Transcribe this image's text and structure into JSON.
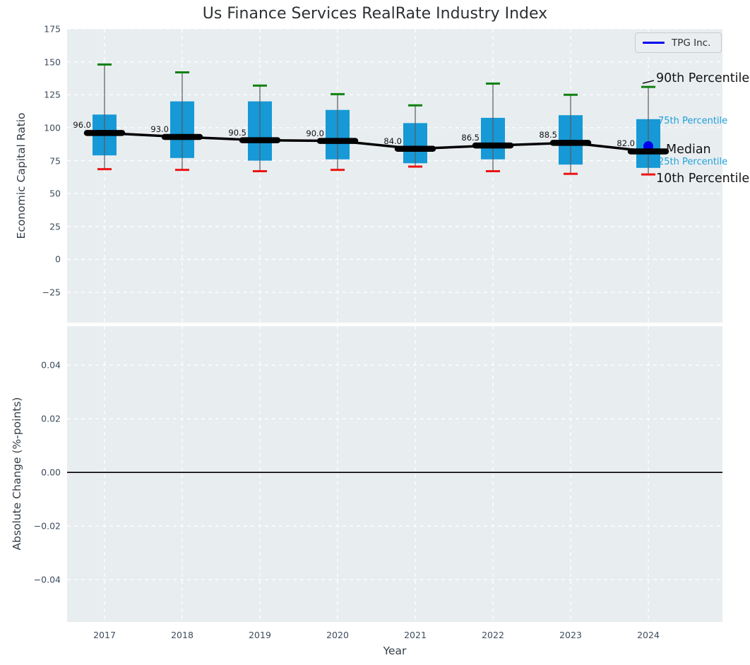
{
  "title": "Us Finance Services RealRate Industry Index",
  "legend": {
    "label": "TPG Inc.",
    "line_color": "#0000ee"
  },
  "annotations": {
    "p90": "90th Percentile",
    "p75": "75th Percentile",
    "median": "Median",
    "p25": "25th Percentile",
    "p10": "10th Percentile"
  },
  "chart_data": {
    "type": "boxplot",
    "title": "Us Finance Services RealRate Industry Index",
    "xlabel": "Year",
    "ylabel_top": "Economic Capital Ratio",
    "ylabel_bottom": "Absolute Change (%-points)",
    "categories": [
      "2017",
      "2018",
      "2019",
      "2020",
      "2021",
      "2022",
      "2023",
      "2024"
    ],
    "boxes": [
      {
        "year": "2017",
        "p10": 68.5,
        "p25": 79.0,
        "median": 96.0,
        "p75": 110.0,
        "p90": 148.0
      },
      {
        "year": "2018",
        "p10": 68.0,
        "p25": 77.0,
        "median": 93.0,
        "p75": 120.0,
        "p90": 142.0
      },
      {
        "year": "2019",
        "p10": 67.0,
        "p25": 75.0,
        "median": 90.5,
        "p75": 120.0,
        "p90": 132.0
      },
      {
        "year": "2020",
        "p10": 68.0,
        "p25": 76.0,
        "median": 90.0,
        "p75": 113.5,
        "p90": 125.5
      },
      {
        "year": "2021",
        "p10": 70.5,
        "p25": 73.0,
        "median": 84.0,
        "p75": 103.5,
        "p90": 117.0
      },
      {
        "year": "2022",
        "p10": 67.0,
        "p25": 76.0,
        "median": 86.5,
        "p75": 107.5,
        "p90": 133.5
      },
      {
        "year": "2023",
        "p10": 65.0,
        "p25": 72.0,
        "median": 88.5,
        "p75": 109.5,
        "p90": 125.0
      },
      {
        "year": "2024",
        "p10": 64.5,
        "p25": 69.5,
        "median": 82.0,
        "p75": 106.5,
        "p90": 131.0
      }
    ],
    "median_labels": [
      "96.0",
      "93.0",
      "90.5",
      "90.0",
      "84.0",
      "86.5",
      "88.5",
      "82.0"
    ],
    "tpg_point": {
      "year": "2024",
      "value": 86.0
    },
    "top_axis": {
      "yticks": [
        175,
        150,
        125,
        100,
        75,
        50,
        25,
        0,
        -25
      ],
      "ylim": [
        -48,
        175
      ]
    },
    "bottom_axis": {
      "yticks": [
        "0.04",
        "0.02",
        "0.00",
        "−0.02",
        "−0.04"
      ],
      "ytick_values": [
        0.04,
        0.02,
        0.0,
        -0.02,
        -0.04
      ],
      "ylim": [
        -0.0558,
        0.0546
      ],
      "zero_line": 0.0
    },
    "colors": {
      "box_fill": "#1699d6",
      "whisker": "#5a5a5f",
      "cap_top": "#0f800f",
      "cap_bottom": "#eb1414",
      "median_line": "#000000",
      "tpg": "#0000ee",
      "plot_bg": "#e8edf0",
      "grid": "#ffffff",
      "tick_text": "#3d4c5e",
      "pct_label": "#1f9fd8"
    },
    "layout_hints": {
      "grid": true,
      "legend_position": "upper right"
    }
  }
}
